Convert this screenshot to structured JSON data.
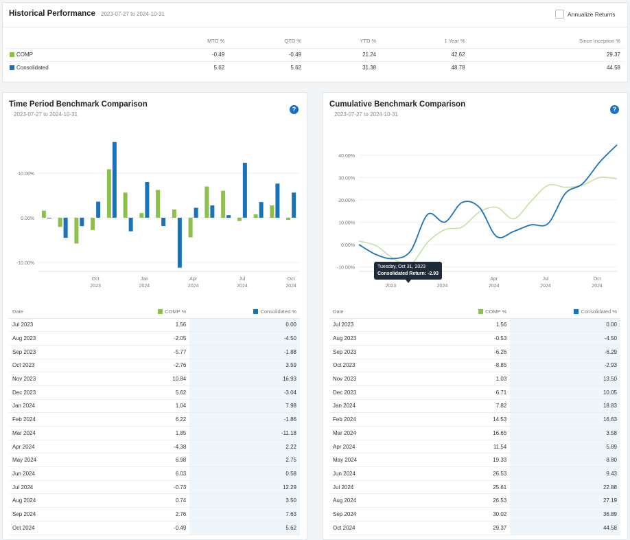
{
  "colors": {
    "comp": "#8dc04a",
    "consolidated": "#1a73b8",
    "line_comp": "#c7e0a1",
    "shade": "#eef5fb"
  },
  "historical": {
    "title": "Historical Performance",
    "date_range": "2023-07-27 to 2024-10-31",
    "annualize_label": "Annualize Returns",
    "columns": [
      "MTD %",
      "QTD %",
      "YTD %",
      "1 Year %",
      "Since Inception %"
    ],
    "rows": [
      {
        "name": "COMP",
        "values": [
          "-0.49",
          "-0.49",
          "21.24",
          "42.62",
          "29.37"
        ]
      },
      {
        "name": "Consolidated",
        "values": [
          "5.62",
          "5.62",
          "31.38",
          "48.78",
          "44.58"
        ]
      }
    ]
  },
  "left_panel": {
    "title": "Time Period Benchmark Comparison",
    "date_range": "2023-07-27 to 2024-10-31",
    "help": "?",
    "table_headers": {
      "date": "Date",
      "comp": "COMP %",
      "consolidated": "Consolidated %"
    },
    "rows": [
      [
        "Jul 2023",
        "1.56",
        "0.00"
      ],
      [
        "Aug 2023",
        "-2.05",
        "-4.50"
      ],
      [
        "Sep 2023",
        "-5.77",
        "-1.88"
      ],
      [
        "Oct 2023",
        "-2.76",
        "3.59"
      ],
      [
        "Nov 2023",
        "10.84",
        "16.93"
      ],
      [
        "Dec 2023",
        "5.62",
        "-3.04"
      ],
      [
        "Jan 2024",
        "1.04",
        "7.98"
      ],
      [
        "Feb 2024",
        "6.22",
        "-1.86"
      ],
      [
        "Mar 2024",
        "1.85",
        "-11.18"
      ],
      [
        "Apr 2024",
        "-4.38",
        "2.22"
      ],
      [
        "May 2024",
        "6.98",
        "2.75"
      ],
      [
        "Jun 2024",
        "6.03",
        "0.58"
      ],
      [
        "Jul 2024",
        "-0.73",
        "12.29"
      ],
      [
        "Aug 2024",
        "0.74",
        "3.50"
      ],
      [
        "Sep 2024",
        "2.76",
        "7.63"
      ],
      [
        "Oct 2024",
        "-0.49",
        "5.62"
      ]
    ]
  },
  "right_panel": {
    "title": "Cumulative Benchmark Comparison",
    "date_range": "2023-07-27 to 2024-10-31",
    "help": "?",
    "tooltip": {
      "date": "Tuesday, Oct 31, 2023",
      "label": "Consolidated Return:",
      "value": "-2.93"
    },
    "table_headers": {
      "date": "Date",
      "comp": "COMP %",
      "consolidated": "Consolidated %"
    },
    "rows": [
      [
        "Jul 2023",
        "1.56",
        "0.00"
      ],
      [
        "Aug 2023",
        "-0.53",
        "-4.50"
      ],
      [
        "Sep 2023",
        "-6.26",
        "-6.29"
      ],
      [
        "Oct 2023",
        "-8.85",
        "-2.93"
      ],
      [
        "Nov 2023",
        "1.03",
        "13.50"
      ],
      [
        "Dec 2023",
        "6.71",
        "10.05"
      ],
      [
        "Jan 2024",
        "7.82",
        "18.83"
      ],
      [
        "Feb 2024",
        "14.53",
        "16.63"
      ],
      [
        "Mar 2024",
        "16.65",
        "3.58"
      ],
      [
        "Apr 2024",
        "11.54",
        "5.89"
      ],
      [
        "May 2024",
        "19.33",
        "8.80"
      ],
      [
        "Jun 2024",
        "26.53",
        "9.43"
      ],
      [
        "Jul 2024",
        "25.61",
        "22.88"
      ],
      [
        "Aug 2024",
        "26.53",
        "27.19"
      ],
      [
        "Sep 2024",
        "30.02",
        "36.89"
      ],
      [
        "Oct 2024",
        "29.37",
        "44.58"
      ]
    ]
  },
  "chart_data": [
    {
      "type": "bar",
      "categories": [
        "Jul 2023",
        "Aug 2023",
        "Sep 2023",
        "Oct 2023",
        "Nov 2023",
        "Dec 2023",
        "Jan 2024",
        "Feb 2024",
        "Mar 2024",
        "Apr 2024",
        "May 2024",
        "Jun 2024",
        "Jul 2024",
        "Aug 2024",
        "Sep 2024",
        "Oct 2024"
      ],
      "x_ticks": [
        {
          "month": "Oct",
          "year": "2023",
          "index": 3
        },
        {
          "month": "Jan",
          "year": "2024",
          "index": 6
        },
        {
          "month": "Apr",
          "year": "2024",
          "index": 9
        },
        {
          "month": "Jul",
          "year": "2024",
          "index": 12
        },
        {
          "month": "Oct",
          "year": "2024",
          "index": 15
        }
      ],
      "y_ticks": [
        10,
        0,
        -10
      ],
      "y_tick_labels": [
        "10.00%",
        "0.00%",
        "-10.00%"
      ],
      "ylim": [
        -12,
        17.5
      ],
      "series": [
        {
          "name": "COMP",
          "values": [
            1.56,
            -2.05,
            -5.77,
            -2.76,
            10.84,
            5.62,
            1.04,
            6.22,
            1.85,
            -4.38,
            6.98,
            6.03,
            -0.73,
            0.74,
            2.76,
            -0.49
          ]
        },
        {
          "name": "Consolidated",
          "values": [
            0.0,
            -4.5,
            -1.88,
            3.59,
            16.93,
            -3.04,
            7.98,
            -1.86,
            -11.18,
            2.22,
            2.75,
            0.58,
            12.29,
            3.5,
            7.63,
            5.62
          ]
        }
      ]
    },
    {
      "type": "line",
      "x_ticks": [
        {
          "month": "",
          "year": "2023",
          "index": 1.85
        },
        {
          "month": "",
          "year": "2024",
          "index": 4.85
        },
        {
          "month": "Apr",
          "year": "2024",
          "index": 7.85
        },
        {
          "month": "Jul",
          "year": "2024",
          "index": 10.85
        },
        {
          "month": "Oct",
          "year": "2024",
          "index": 13.85
        }
      ],
      "y_ticks": [
        40,
        30,
        20,
        10,
        0,
        -10
      ],
      "y_tick_labels": [
        "40.00%",
        "30.00%",
        "20.00%",
        "10.00%",
        "0.00%",
        "-10.00%"
      ],
      "ylim": [
        -12,
        47
      ],
      "series": [
        {
          "name": "COMP",
          "values": [
            1.56,
            -0.53,
            -6.26,
            -8.85,
            1.03,
            6.71,
            7.82,
            14.53,
            16.65,
            11.54,
            19.33,
            26.53,
            25.61,
            26.53,
            30.02,
            29.37
          ]
        },
        {
          "name": "Consolidated",
          "values": [
            0.0,
            -4.5,
            -6.29,
            -2.93,
            13.5,
            10.05,
            18.83,
            16.63,
            3.58,
            5.89,
            8.8,
            9.43,
            22.88,
            27.19,
            36.89,
            44.58
          ]
        }
      ]
    }
  ]
}
